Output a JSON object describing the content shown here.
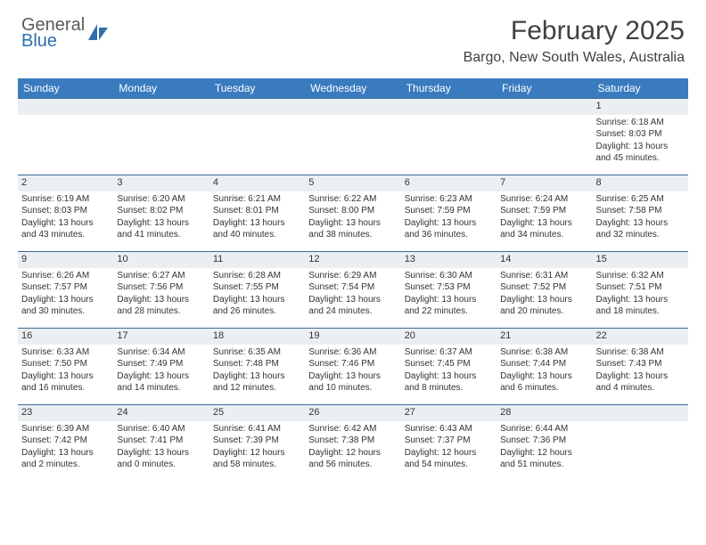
{
  "logo": {
    "line1": "General",
    "line2": "Blue"
  },
  "title": "February 2025",
  "location": "Bargo, New South Wales, Australia",
  "weekday_headers": [
    "Sunday",
    "Monday",
    "Tuesday",
    "Wednesday",
    "Thursday",
    "Friday",
    "Saturday"
  ],
  "colors": {
    "header_bg": "#3a7bbf",
    "header_text": "#ffffff",
    "daynum_bg": "#eceff1",
    "rule": "#3a6a9a",
    "text": "#333333",
    "logo_gray": "#5a5a5a",
    "logo_blue": "#2f6fad"
  },
  "weeks": [
    [
      null,
      null,
      null,
      null,
      null,
      null,
      {
        "n": "1",
        "sr": "Sunrise: 6:18 AM",
        "ss": "Sunset: 8:03 PM",
        "dl": "Daylight: 13 hours and 45 minutes."
      }
    ],
    [
      {
        "n": "2",
        "sr": "Sunrise: 6:19 AM",
        "ss": "Sunset: 8:03 PM",
        "dl": "Daylight: 13 hours and 43 minutes."
      },
      {
        "n": "3",
        "sr": "Sunrise: 6:20 AM",
        "ss": "Sunset: 8:02 PM",
        "dl": "Daylight: 13 hours and 41 minutes."
      },
      {
        "n": "4",
        "sr": "Sunrise: 6:21 AM",
        "ss": "Sunset: 8:01 PM",
        "dl": "Daylight: 13 hours and 40 minutes."
      },
      {
        "n": "5",
        "sr": "Sunrise: 6:22 AM",
        "ss": "Sunset: 8:00 PM",
        "dl": "Daylight: 13 hours and 38 minutes."
      },
      {
        "n": "6",
        "sr": "Sunrise: 6:23 AM",
        "ss": "Sunset: 7:59 PM",
        "dl": "Daylight: 13 hours and 36 minutes."
      },
      {
        "n": "7",
        "sr": "Sunrise: 6:24 AM",
        "ss": "Sunset: 7:59 PM",
        "dl": "Daylight: 13 hours and 34 minutes."
      },
      {
        "n": "8",
        "sr": "Sunrise: 6:25 AM",
        "ss": "Sunset: 7:58 PM",
        "dl": "Daylight: 13 hours and 32 minutes."
      }
    ],
    [
      {
        "n": "9",
        "sr": "Sunrise: 6:26 AM",
        "ss": "Sunset: 7:57 PM",
        "dl": "Daylight: 13 hours and 30 minutes."
      },
      {
        "n": "10",
        "sr": "Sunrise: 6:27 AM",
        "ss": "Sunset: 7:56 PM",
        "dl": "Daylight: 13 hours and 28 minutes."
      },
      {
        "n": "11",
        "sr": "Sunrise: 6:28 AM",
        "ss": "Sunset: 7:55 PM",
        "dl": "Daylight: 13 hours and 26 minutes."
      },
      {
        "n": "12",
        "sr": "Sunrise: 6:29 AM",
        "ss": "Sunset: 7:54 PM",
        "dl": "Daylight: 13 hours and 24 minutes."
      },
      {
        "n": "13",
        "sr": "Sunrise: 6:30 AM",
        "ss": "Sunset: 7:53 PM",
        "dl": "Daylight: 13 hours and 22 minutes."
      },
      {
        "n": "14",
        "sr": "Sunrise: 6:31 AM",
        "ss": "Sunset: 7:52 PM",
        "dl": "Daylight: 13 hours and 20 minutes."
      },
      {
        "n": "15",
        "sr": "Sunrise: 6:32 AM",
        "ss": "Sunset: 7:51 PM",
        "dl": "Daylight: 13 hours and 18 minutes."
      }
    ],
    [
      {
        "n": "16",
        "sr": "Sunrise: 6:33 AM",
        "ss": "Sunset: 7:50 PM",
        "dl": "Daylight: 13 hours and 16 minutes."
      },
      {
        "n": "17",
        "sr": "Sunrise: 6:34 AM",
        "ss": "Sunset: 7:49 PM",
        "dl": "Daylight: 13 hours and 14 minutes."
      },
      {
        "n": "18",
        "sr": "Sunrise: 6:35 AM",
        "ss": "Sunset: 7:48 PM",
        "dl": "Daylight: 13 hours and 12 minutes."
      },
      {
        "n": "19",
        "sr": "Sunrise: 6:36 AM",
        "ss": "Sunset: 7:46 PM",
        "dl": "Daylight: 13 hours and 10 minutes."
      },
      {
        "n": "20",
        "sr": "Sunrise: 6:37 AM",
        "ss": "Sunset: 7:45 PM",
        "dl": "Daylight: 13 hours and 8 minutes."
      },
      {
        "n": "21",
        "sr": "Sunrise: 6:38 AM",
        "ss": "Sunset: 7:44 PM",
        "dl": "Daylight: 13 hours and 6 minutes."
      },
      {
        "n": "22",
        "sr": "Sunrise: 6:38 AM",
        "ss": "Sunset: 7:43 PM",
        "dl": "Daylight: 13 hours and 4 minutes."
      }
    ],
    [
      {
        "n": "23",
        "sr": "Sunrise: 6:39 AM",
        "ss": "Sunset: 7:42 PM",
        "dl": "Daylight: 13 hours and 2 minutes."
      },
      {
        "n": "24",
        "sr": "Sunrise: 6:40 AM",
        "ss": "Sunset: 7:41 PM",
        "dl": "Daylight: 13 hours and 0 minutes."
      },
      {
        "n": "25",
        "sr": "Sunrise: 6:41 AM",
        "ss": "Sunset: 7:39 PM",
        "dl": "Daylight: 12 hours and 58 minutes."
      },
      {
        "n": "26",
        "sr": "Sunrise: 6:42 AM",
        "ss": "Sunset: 7:38 PM",
        "dl": "Daylight: 12 hours and 56 minutes."
      },
      {
        "n": "27",
        "sr": "Sunrise: 6:43 AM",
        "ss": "Sunset: 7:37 PM",
        "dl": "Daylight: 12 hours and 54 minutes."
      },
      {
        "n": "28",
        "sr": "Sunrise: 6:44 AM",
        "ss": "Sunset: 7:36 PM",
        "dl": "Daylight: 12 hours and 51 minutes."
      },
      null
    ]
  ]
}
